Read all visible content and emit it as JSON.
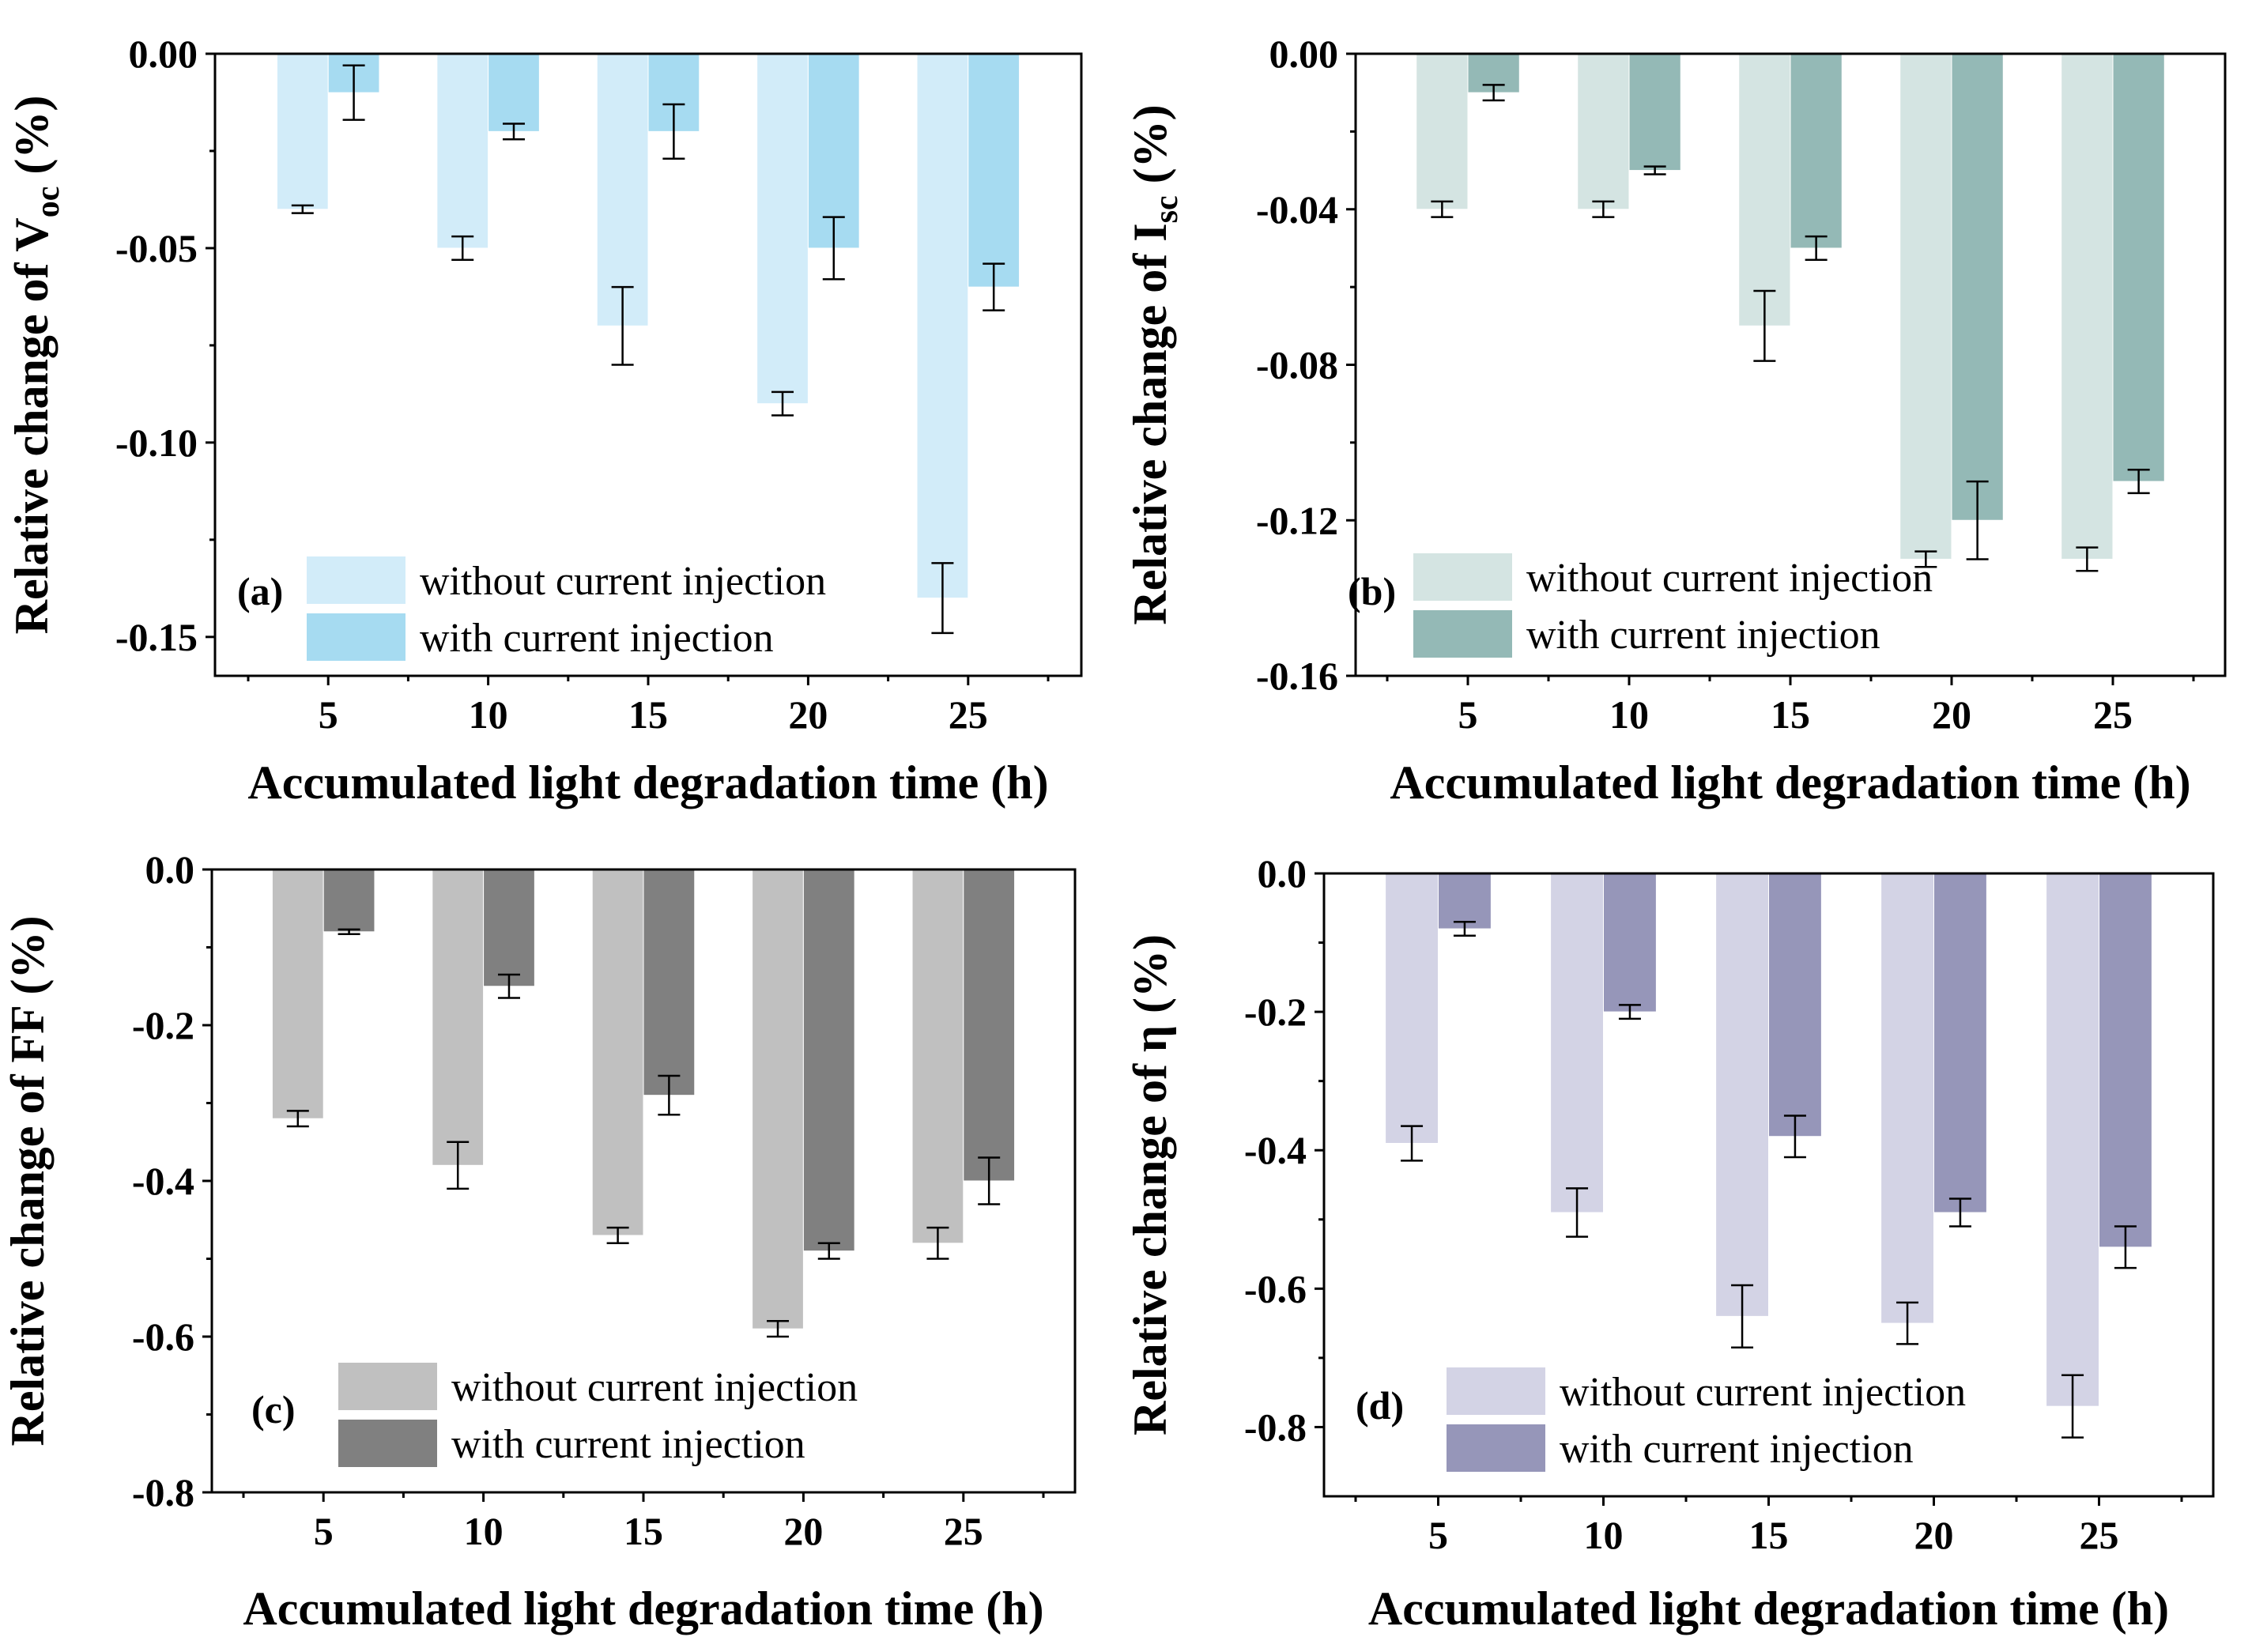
{
  "chart_data": [
    {
      "panel": "(a)",
      "type": "bar",
      "categories": [
        "5",
        "10",
        "15",
        "20",
        "25"
      ],
      "series": [
        {
          "name": "without current injection",
          "color": "#d2ecf9",
          "values": [
            -0.04,
            -0.05,
            -0.07,
            -0.09,
            -0.14
          ],
          "errors": [
            0.001,
            0.003,
            0.01,
            0.003,
            0.009
          ]
        },
        {
          "name": "with current injection",
          "color": "#a6dbf1",
          "values": [
            -0.01,
            -0.02,
            -0.02,
            -0.05,
            -0.06
          ],
          "errors": [
            0.007,
            0.002,
            0.007,
            0.008,
            0.006
          ]
        }
      ],
      "ylim": [
        -0.16,
        0.0
      ],
      "yticks": [
        0.0,
        -0.05,
        -0.1,
        -0.15
      ],
      "ytick_labels": [
        "0.00",
        "-0.05",
        "-0.10",
        "-0.15"
      ],
      "ylabel_prefix": "Relative change of  V",
      "ylabel_sub": "oc",
      "ylabel_suffix": " (%)",
      "xlabel": "Accumulated light degradation time  (h)"
    },
    {
      "panel": "(b)",
      "type": "bar",
      "categories": [
        "5",
        "10",
        "15",
        "20",
        "25"
      ],
      "series": [
        {
          "name": "without current injection",
          "color": "#d4e4e2",
          "values": [
            -0.04,
            -0.04,
            -0.07,
            -0.13,
            -0.13
          ],
          "errors": [
            0.002,
            0.002,
            0.009,
            0.002,
            0.003
          ]
        },
        {
          "name": "with current injection",
          "color": "#94b9b6",
          "values": [
            -0.01,
            -0.03,
            -0.05,
            -0.12,
            -0.11
          ],
          "errors": [
            0.002,
            0.001,
            0.003,
            0.01,
            0.003
          ]
        }
      ],
      "ylim": [
        -0.16,
        0.0
      ],
      "yticks": [
        0.0,
        -0.04,
        -0.08,
        -0.12,
        -0.16
      ],
      "ytick_labels": [
        "0.00",
        "-0.04",
        "-0.08",
        "-0.12",
        "-0.16"
      ],
      "ylabel_prefix": "Relative change of  I",
      "ylabel_sub": "sc",
      "ylabel_suffix": " (%)",
      "xlabel": "Accumulated light degradation time  (h)"
    },
    {
      "panel": "(c)",
      "type": "bar",
      "categories": [
        "5",
        "10",
        "15",
        "20",
        "25"
      ],
      "series": [
        {
          "name": "without current injection",
          "color": "#c0c0c0",
          "values": [
            -0.32,
            -0.38,
            -0.47,
            -0.59,
            -0.48
          ],
          "errors": [
            0.01,
            0.03,
            0.01,
            0.01,
            0.02
          ]
        },
        {
          "name": "with current injection",
          "color": "#808080",
          "values": [
            -0.08,
            -0.15,
            -0.29,
            -0.49,
            -0.4
          ],
          "errors": [
            0.003,
            0.015,
            0.025,
            0.01,
            0.03
          ]
        }
      ],
      "ylim": [
        -0.8,
        0.0
      ],
      "yticks": [
        0.0,
        -0.2,
        -0.4,
        -0.6,
        -0.8
      ],
      "ytick_labels": [
        "0.0",
        "-0.2",
        "-0.4",
        "-0.6",
        "-0.8"
      ],
      "ylabel_prefix": "Relative change of  FF (%)",
      "ylabel_sub": "",
      "ylabel_suffix": "",
      "xlabel": "Accumulated light degradation time  (h)"
    },
    {
      "panel": "(d)",
      "type": "bar",
      "categories": [
        "5",
        "10",
        "15",
        "20",
        "25"
      ],
      "series": [
        {
          "name": "without current injection",
          "color": "#d3d3e5",
          "values": [
            -0.39,
            -0.49,
            -0.64,
            -0.65,
            -0.77
          ],
          "errors": [
            0.025,
            0.035,
            0.045,
            0.03,
            0.045
          ]
        },
        {
          "name": "with current injection",
          "color": "#9696b9",
          "values": [
            -0.08,
            -0.2,
            -0.38,
            -0.49,
            -0.54
          ],
          "errors": [
            0.01,
            0.01,
            0.03,
            0.02,
            0.03
          ]
        }
      ],
      "ylim": [
        -0.9,
        0.0
      ],
      "yticks": [
        0.0,
        -0.2,
        -0.4,
        -0.6,
        -0.8
      ],
      "ytick_labels": [
        "0.0",
        "-0.2",
        "-0.4",
        "-0.6",
        "-0.8"
      ],
      "ylabel_prefix": "Relative change of  η (%)",
      "ylabel_sub": "",
      "ylabel_suffix": "",
      "xlabel": "Accumulated light degradation time  (h)"
    }
  ]
}
